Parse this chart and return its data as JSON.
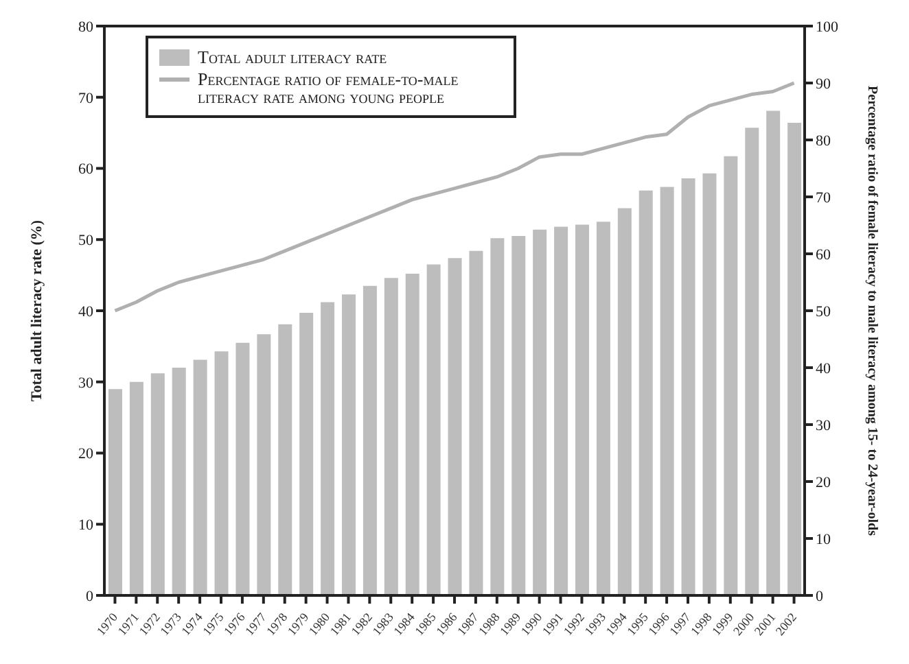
{
  "chart_data": {
    "type": "bar",
    "categories": [
      "1970",
      "1971",
      "1972",
      "1973",
      "1974",
      "1975",
      "1976",
      "1977",
      "1978",
      "1979",
      "1980",
      "1981",
      "1982",
      "1983",
      "1984",
      "1985",
      "1986",
      "1987",
      "1988",
      "1989",
      "1990",
      "1991",
      "1992",
      "1993",
      "1994",
      "1995",
      "1996",
      "1997",
      "1998",
      "1999",
      "2000",
      "2001",
      "2002"
    ],
    "ylabel": "Total adult literacy rate (%)",
    "y2label": "Percentage ratio of female literacy to male literacy among 15- to 24-year-olds",
    "series": [
      {
        "name": "Total adult literacy rate",
        "color": "#bdbdbd",
        "values": [
          29,
          30,
          31.2,
          32,
          33.1,
          34.3,
          35.5,
          36.7,
          38.1,
          39.7,
          41.2,
          42.3,
          43.5,
          44.6,
          45.2,
          46.5,
          47.4,
          48.4,
          50.2,
          50.5,
          51.4,
          51.8,
          52.1,
          52.5,
          54.4,
          56.9,
          57.4,
          58.6,
          59.3,
          61.7,
          65.7,
          68.1,
          66.4
        ]
      },
      {
        "name": "Percentage ratio of female-to-male literacy rate among young people",
        "type": "line",
        "axis": "y2",
        "color": "#b0b0b0",
        "values": [
          50,
          51.5,
          53.5,
          55,
          56,
          57,
          58,
          59,
          60.5,
          62,
          63.5,
          65,
          66.5,
          68,
          69.5,
          70.5,
          71.5,
          72.5,
          73.5,
          75,
          77,
          77.5,
          77.5,
          78.5,
          79.5,
          80.5,
          81,
          84,
          86,
          87,
          88,
          88.5,
          90
        ]
      }
    ],
    "ylim": [
      0,
      80
    ],
    "yticks": [
      0,
      10,
      20,
      30,
      40,
      50,
      60,
      70,
      80
    ],
    "y2lim": [
      0,
      100
    ],
    "y2ticks": [
      0,
      10,
      20,
      30,
      40,
      50,
      60,
      70,
      80,
      90,
      100
    ],
    "legend": "top left",
    "grid": false,
    "marker": "none",
    "line_style": "solid"
  }
}
